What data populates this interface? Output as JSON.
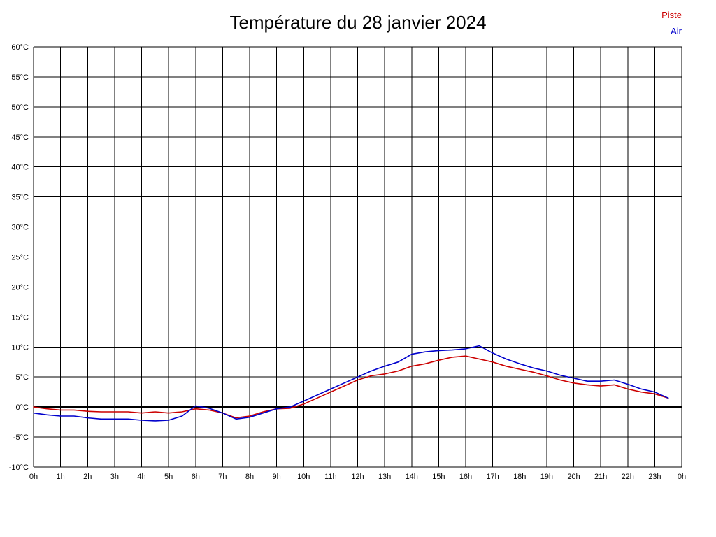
{
  "chart_data": {
    "type": "line",
    "title": "Température du 28 janvier 2024",
    "xlabel": "",
    "ylabel": "",
    "ylim": [
      -10,
      60
    ],
    "y_tick_step": 5,
    "xlim_hours": [
      0,
      24
    ],
    "grid": true,
    "legend_position": "top-right",
    "y_tick_labels": [
      "60°C",
      "55°C",
      "50°C",
      "45°C",
      "40°C",
      "35°C",
      "30°C",
      "25°C",
      "20°C",
      "15°C",
      "10°C",
      "5°C",
      "0°C",
      "-5°C",
      "-10°C"
    ],
    "x_tick_labels": [
      "0h",
      "1h",
      "2h",
      "3h",
      "4h",
      "5h",
      "6h",
      "7h",
      "8h",
      "9h",
      "10h",
      "11h",
      "12h",
      "13h",
      "14h",
      "15h",
      "16h",
      "17h",
      "18h",
      "19h",
      "20h",
      "21h",
      "22h",
      "23h",
      "0h"
    ],
    "x": [
      0,
      0.5,
      1,
      1.5,
      2,
      2.5,
      3,
      3.5,
      4,
      4.5,
      5,
      5.5,
      6,
      6.5,
      7,
      7.5,
      8,
      8.5,
      9,
      9.5,
      10,
      10.5,
      11,
      11.5,
      12,
      12.5,
      13,
      13.5,
      14,
      14.5,
      15,
      15.5,
      16,
      16.5,
      17,
      17.5,
      18,
      18.5,
      19,
      19.5,
      20,
      20.5,
      21,
      21.5,
      22,
      22.5,
      23,
      23.5
    ],
    "series": [
      {
        "name": "Piste",
        "color": "#cc0000",
        "values": [
          0,
          -0.3,
          -0.5,
          -0.5,
          -0.7,
          -0.8,
          -0.8,
          -0.8,
          -1,
          -0.8,
          -1,
          -0.8,
          -0.3,
          -0.5,
          -1,
          -1.8,
          -1.5,
          -0.8,
          -0.3,
          -0.2,
          0.5,
          1.5,
          2.5,
          3.5,
          4.5,
          5.2,
          5.5,
          6,
          6.8,
          7.2,
          7.8,
          8.3,
          8.5,
          8,
          7.5,
          6.8,
          6.3,
          5.8,
          5.2,
          4.5,
          4,
          3.7,
          3.5,
          3.7,
          3,
          2.5,
          2.2,
          1.5
        ]
      },
      {
        "name": "Air",
        "color": "#0000cc",
        "values": [
          -1,
          -1.3,
          -1.5,
          -1.5,
          -1.8,
          -2,
          -2,
          -2,
          -2.2,
          -2.3,
          -2.2,
          -1.5,
          0.2,
          -0.2,
          -1,
          -2,
          -1.7,
          -1,
          -0.3,
          0,
          1,
          2,
          3,
          4,
          5,
          6,
          6.8,
          7.5,
          8.8,
          9.2,
          9.4,
          9.5,
          9.7,
          10.2,
          9,
          8,
          7.2,
          6.5,
          6,
          5.3,
          4.8,
          4.3,
          4.3,
          4.5,
          3.8,
          3,
          2.5,
          1.5
        ]
      }
    ],
    "zero_line": {
      "value": 0,
      "color": "#000000",
      "width": 3
    }
  }
}
